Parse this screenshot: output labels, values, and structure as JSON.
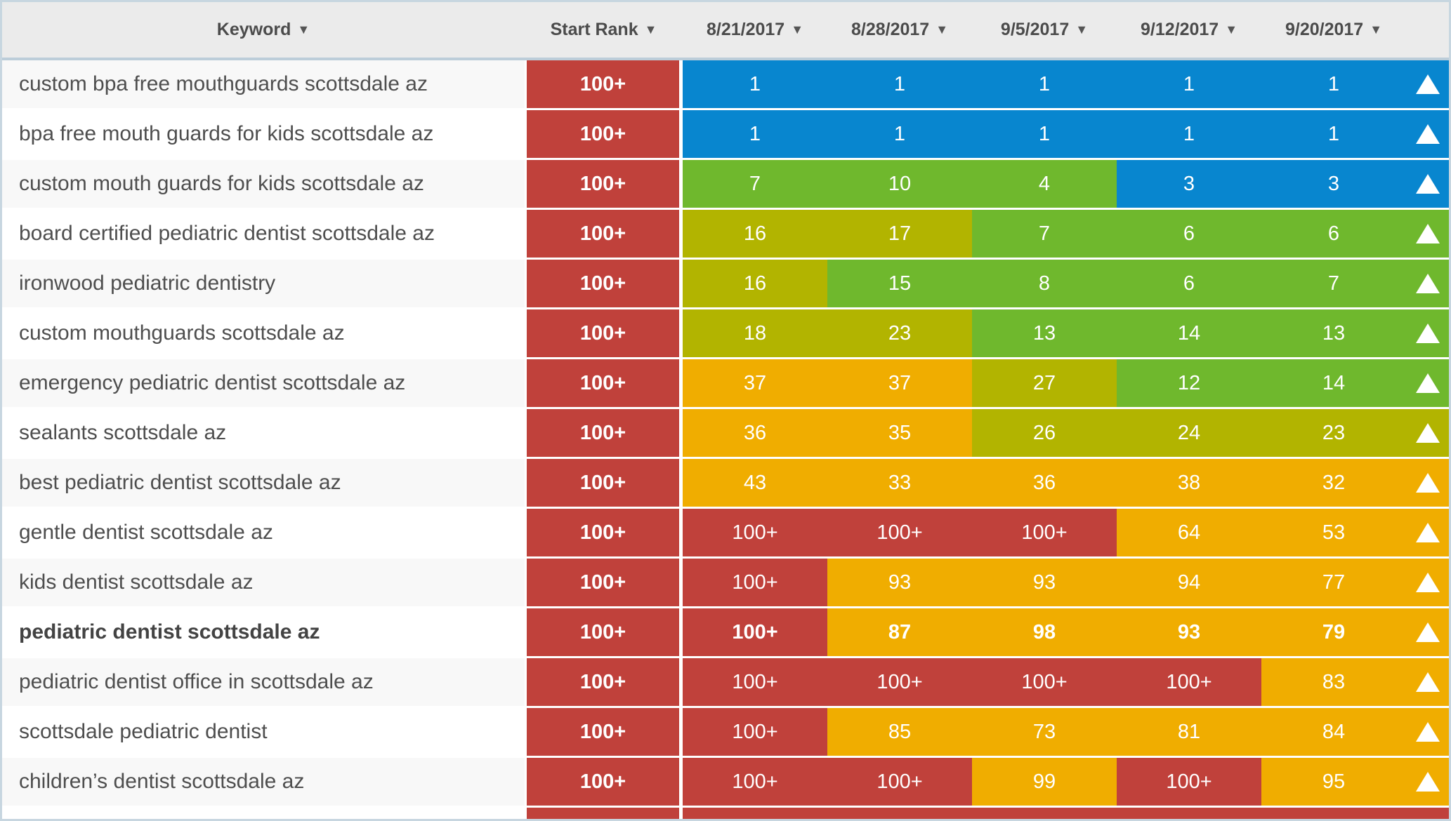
{
  "table": {
    "sort_glyph": "▼",
    "colors": {
      "blue": "#0886cf",
      "green": "#6fb82d",
      "olive": "#b2b400",
      "orange": "#f0ad00",
      "red": "#c0413b",
      "header_bg": "#ebebeb",
      "header_border": "#bccdd9",
      "outer_border": "#c7d6e0",
      "row_alt_bg": "#f8f8f8"
    },
    "columns": [
      {
        "label": "Keyword"
      },
      {
        "label": "Start Rank"
      },
      {
        "label": "8/21/2017"
      },
      {
        "label": "8/28/2017"
      },
      {
        "label": "9/5/2017"
      },
      {
        "label": "9/12/2017"
      },
      {
        "label": "9/20/2017"
      }
    ],
    "rows": [
      {
        "keyword": "custom bpa free mouthguards scottsdale az",
        "bold": false,
        "start_rank": "100+",
        "start_color": "red",
        "values": [
          {
            "text": "1",
            "color": "blue"
          },
          {
            "text": "1",
            "color": "blue"
          },
          {
            "text": "1",
            "color": "blue"
          },
          {
            "text": "1",
            "color": "blue"
          },
          {
            "text": "1",
            "color": "blue"
          }
        ],
        "trend": {
          "icon": "up",
          "color": "blue"
        }
      },
      {
        "keyword": "bpa free mouth guards for kids scottsdale az",
        "bold": false,
        "start_rank": "100+",
        "start_color": "red",
        "values": [
          {
            "text": "1",
            "color": "blue"
          },
          {
            "text": "1",
            "color": "blue"
          },
          {
            "text": "1",
            "color": "blue"
          },
          {
            "text": "1",
            "color": "blue"
          },
          {
            "text": "1",
            "color": "blue"
          }
        ],
        "trend": {
          "icon": "up",
          "color": "blue"
        }
      },
      {
        "keyword": "custom mouth guards for kids scottsdale az",
        "bold": false,
        "start_rank": "100+",
        "start_color": "red",
        "values": [
          {
            "text": "7",
            "color": "green"
          },
          {
            "text": "10",
            "color": "green"
          },
          {
            "text": "4",
            "color": "green"
          },
          {
            "text": "3",
            "color": "blue"
          },
          {
            "text": "3",
            "color": "blue"
          }
        ],
        "trend": {
          "icon": "up",
          "color": "blue"
        }
      },
      {
        "keyword": "board certified pediatric dentist scottsdale az",
        "bold": false,
        "start_rank": "100+",
        "start_color": "red",
        "values": [
          {
            "text": "16",
            "color": "olive"
          },
          {
            "text": "17",
            "color": "olive"
          },
          {
            "text": "7",
            "color": "green"
          },
          {
            "text": "6",
            "color": "green"
          },
          {
            "text": "6",
            "color": "green"
          }
        ],
        "trend": {
          "icon": "up",
          "color": "green"
        }
      },
      {
        "keyword": "ironwood pediatric dentistry",
        "bold": false,
        "start_rank": "100+",
        "start_color": "red",
        "values": [
          {
            "text": "16",
            "color": "olive"
          },
          {
            "text": "15",
            "color": "green"
          },
          {
            "text": "8",
            "color": "green"
          },
          {
            "text": "6",
            "color": "green"
          },
          {
            "text": "7",
            "color": "green"
          }
        ],
        "trend": {
          "icon": "up",
          "color": "green"
        }
      },
      {
        "keyword": "custom mouthguards scottsdale az",
        "bold": false,
        "start_rank": "100+",
        "start_color": "red",
        "values": [
          {
            "text": "18",
            "color": "olive"
          },
          {
            "text": "23",
            "color": "olive"
          },
          {
            "text": "13",
            "color": "green"
          },
          {
            "text": "14",
            "color": "green"
          },
          {
            "text": "13",
            "color": "green"
          }
        ],
        "trend": {
          "icon": "up",
          "color": "green"
        }
      },
      {
        "keyword": "emergency pediatric dentist scottsdale az",
        "bold": false,
        "start_rank": "100+",
        "start_color": "red",
        "values": [
          {
            "text": "37",
            "color": "orange"
          },
          {
            "text": "37",
            "color": "orange"
          },
          {
            "text": "27",
            "color": "olive"
          },
          {
            "text": "12",
            "color": "green"
          },
          {
            "text": "14",
            "color": "green"
          }
        ],
        "trend": {
          "icon": "up",
          "color": "green"
        }
      },
      {
        "keyword": "sealants scottsdale az",
        "bold": false,
        "start_rank": "100+",
        "start_color": "red",
        "values": [
          {
            "text": "36",
            "color": "orange"
          },
          {
            "text": "35",
            "color": "orange"
          },
          {
            "text": "26",
            "color": "olive"
          },
          {
            "text": "24",
            "color": "olive"
          },
          {
            "text": "23",
            "color": "olive"
          }
        ],
        "trend": {
          "icon": "up",
          "color": "olive"
        }
      },
      {
        "keyword": "best pediatric dentist scottsdale az",
        "bold": false,
        "start_rank": "100+",
        "start_color": "red",
        "values": [
          {
            "text": "43",
            "color": "orange"
          },
          {
            "text": "33",
            "color": "orange"
          },
          {
            "text": "36",
            "color": "orange"
          },
          {
            "text": "38",
            "color": "orange"
          },
          {
            "text": "32",
            "color": "orange"
          }
        ],
        "trend": {
          "icon": "up",
          "color": "orange"
        }
      },
      {
        "keyword": "gentle dentist scottsdale az",
        "bold": false,
        "start_rank": "100+",
        "start_color": "red",
        "values": [
          {
            "text": "100+",
            "color": "red"
          },
          {
            "text": "100+",
            "color": "red"
          },
          {
            "text": "100+",
            "color": "red"
          },
          {
            "text": "64",
            "color": "orange"
          },
          {
            "text": "53",
            "color": "orange"
          }
        ],
        "trend": {
          "icon": "up",
          "color": "orange"
        }
      },
      {
        "keyword": "kids dentist scottsdale az",
        "bold": false,
        "start_rank": "100+",
        "start_color": "red",
        "values": [
          {
            "text": "100+",
            "color": "red"
          },
          {
            "text": "93",
            "color": "orange"
          },
          {
            "text": "93",
            "color": "orange"
          },
          {
            "text": "94",
            "color": "orange"
          },
          {
            "text": "77",
            "color": "orange"
          }
        ],
        "trend": {
          "icon": "up",
          "color": "orange"
        }
      },
      {
        "keyword": "pediatric dentist scottsdale az",
        "bold": true,
        "start_rank": "100+",
        "start_color": "red",
        "values": [
          {
            "text": "100+",
            "color": "red"
          },
          {
            "text": "87",
            "color": "orange"
          },
          {
            "text": "98",
            "color": "orange"
          },
          {
            "text": "93",
            "color": "orange"
          },
          {
            "text": "79",
            "color": "orange"
          }
        ],
        "trend": {
          "icon": "up",
          "color": "orange"
        }
      },
      {
        "keyword": "pediatric dentist office in scottsdale az",
        "bold": false,
        "start_rank": "100+",
        "start_color": "red",
        "values": [
          {
            "text": "100+",
            "color": "red"
          },
          {
            "text": "100+",
            "color": "red"
          },
          {
            "text": "100+",
            "color": "red"
          },
          {
            "text": "100+",
            "color": "red"
          },
          {
            "text": "83",
            "color": "orange"
          }
        ],
        "trend": {
          "icon": "up",
          "color": "orange"
        }
      },
      {
        "keyword": "scottsdale pediatric dentist",
        "bold": false,
        "start_rank": "100+",
        "start_color": "red",
        "values": [
          {
            "text": "100+",
            "color": "red"
          },
          {
            "text": "85",
            "color": "orange"
          },
          {
            "text": "73",
            "color": "orange"
          },
          {
            "text": "81",
            "color": "orange"
          },
          {
            "text": "84",
            "color": "orange"
          }
        ],
        "trend": {
          "icon": "up",
          "color": "orange"
        }
      },
      {
        "keyword": "children’s dentist scottsdale az",
        "bold": false,
        "start_rank": "100+",
        "start_color": "red",
        "values": [
          {
            "text": "100+",
            "color": "red"
          },
          {
            "text": "100+",
            "color": "red"
          },
          {
            "text": "99",
            "color": "orange"
          },
          {
            "text": "100+",
            "color": "red"
          },
          {
            "text": "95",
            "color": "orange"
          }
        ],
        "trend": {
          "icon": "up",
          "color": "orange"
        }
      }
    ],
    "partial_row": {
      "keyword": "",
      "bold": false,
      "start_rank": "",
      "start_color": "red",
      "values": [
        {
          "text": "",
          "color": "red"
        },
        {
          "text": "",
          "color": "red"
        },
        {
          "text": "",
          "color": "red"
        },
        {
          "text": "",
          "color": "red"
        },
        {
          "text": "",
          "color": "red"
        }
      ],
      "trend": {
        "icon": "up",
        "color": "red"
      },
      "partial": true
    }
  }
}
